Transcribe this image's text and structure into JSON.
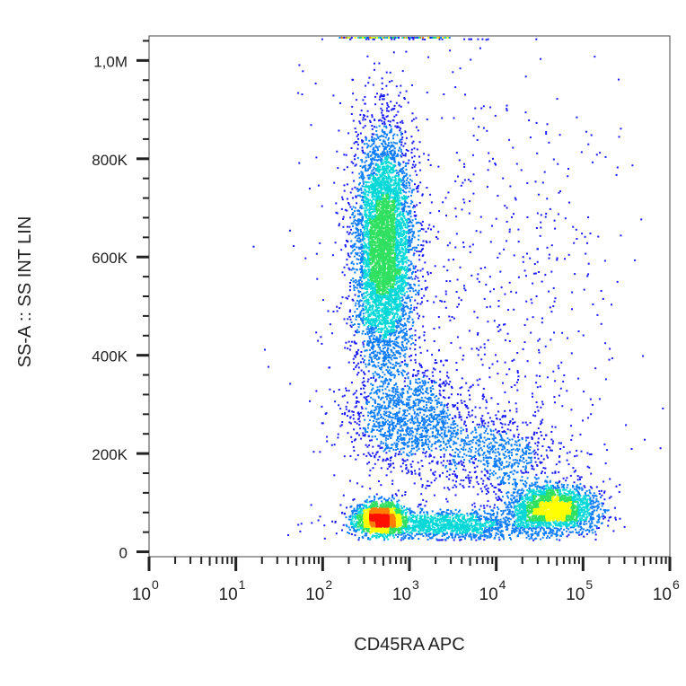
{
  "chart_data": {
    "type": "scatter",
    "title": "",
    "xlabel": "CD45RA APC",
    "ylabel": "SS-A :: SS INT LIN",
    "x_scale": "log",
    "xlim": [
      1,
      1000000
    ],
    "ylim": [
      -10000,
      1050000
    ],
    "x_ticks": [
      {
        "value": 1,
        "base": "10",
        "exp": "0"
      },
      {
        "value": 10,
        "base": "10",
        "exp": "1"
      },
      {
        "value": 100,
        "base": "10",
        "exp": "2"
      },
      {
        "value": 1000,
        "base": "10",
        "exp": "3"
      },
      {
        "value": 10000,
        "base": "10",
        "exp": "4"
      },
      {
        "value": 100000,
        "base": "10",
        "exp": "5"
      },
      {
        "value": 1000000,
        "base": "10",
        "exp": "6"
      }
    ],
    "y_ticks": [
      {
        "value": 0,
        "label": "0"
      },
      {
        "value": 200000,
        "label": "200K"
      },
      {
        "value": 400000,
        "label": "400K"
      },
      {
        "value": 600000,
        "label": "600K"
      },
      {
        "value": 800000,
        "label": "800K"
      },
      {
        "value": 1000000,
        "label": "1,0M"
      }
    ],
    "grid": false,
    "legend": "none",
    "density_colormap": [
      "#1a1aff",
      "#0a7cff",
      "#00d8d8",
      "#30e060",
      "#ffff00",
      "#ff8000",
      "#ff1000"
    ],
    "populations": [
      {
        "x_center": 500,
        "x_spread_decades": 0.17,
        "y_center": 620000,
        "y_spread": 120000,
        "weight": 0.38
      },
      {
        "x_center": 450,
        "x_spread_decades": 0.14,
        "y_center": 70000,
        "y_spread": 16000,
        "weight": 0.13
      },
      {
        "x_center": 45000,
        "x_spread_decades": 0.25,
        "y_center": 90000,
        "y_spread": 22000,
        "weight": 0.16
      },
      {
        "x_center": 3000,
        "x_spread_decades": 0.55,
        "y_center": 55000,
        "y_spread": 15000,
        "weight": 0.1
      },
      {
        "x_center": 1000,
        "x_spread_decades": 0.35,
        "y_center": 270000,
        "y_spread": 55000,
        "weight": 0.09
      },
      {
        "x_center": 10000,
        "x_spread_decades": 0.35,
        "y_center": 200000,
        "y_spread": 45000,
        "weight": 0.05
      },
      {
        "x_center": 20000,
        "x_spread_decades": 0.6,
        "y_center": 500000,
        "y_spread": 250000,
        "weight": 0.03
      },
      {
        "x_center": 800,
        "x_spread_decades": 0.6,
        "y_center": 500000,
        "y_spread": 300000,
        "weight": 0.03
      }
    ],
    "saturation_row": {
      "y_value": 1050000,
      "x_from": 150,
      "x_to": 3000
    }
  }
}
